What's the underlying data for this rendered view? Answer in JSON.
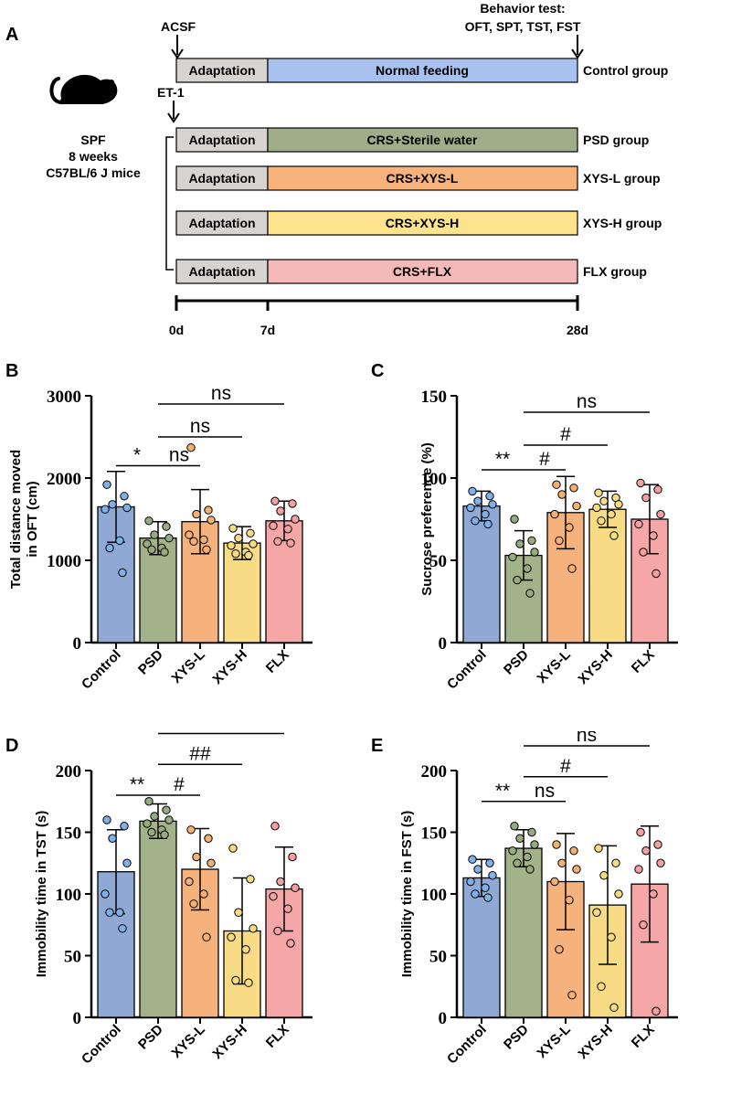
{
  "panelA": {
    "letter": "A",
    "subject": {
      "line1": "SPF",
      "line2": "8 weeks",
      "line3": "C57BL/6 J mice",
      "icon": "mouse-icon"
    },
    "acsf_label": "ACSF",
    "et1_label": "ET-1",
    "behavior_test_line1": "Behavior test:",
    "behavior_test_line2": "OFT, SPT, TST, FST",
    "adaptation_label": "Adaptation",
    "rows": [
      {
        "treatment": "Normal feeding",
        "group": "Control group",
        "color": "#a9c1ee"
      },
      {
        "treatment": "CRS+Sterile water",
        "group": "PSD group",
        "color": "#9fae88"
      },
      {
        "treatment": "CRS+XYS-L",
        "group": "XYS-L group",
        "color": "#f8b27c"
      },
      {
        "treatment": "CRS+XYS-H",
        "group": "XYS-H group",
        "color": "#fde38b"
      },
      {
        "treatment": "CRS+FLX",
        "group": "FLX group",
        "color": "#f6b9b9"
      }
    ],
    "timeline": {
      "t0": "0d",
      "t1": "7d",
      "t2": "28d"
    }
  },
  "chart_data": [
    {
      "panel": "B",
      "type": "bar",
      "categories": [
        "Control",
        "PSD",
        "XYS-L",
        "XYS-H",
        "FLX"
      ],
      "ylabel_line1": "Total distance moved",
      "ylabel_line2": "in OFT (cm)",
      "ylim": [
        0,
        3000
      ],
      "yticks": [
        0,
        1000,
        2000,
        3000
      ],
      "values": [
        1650,
        1270,
        1470,
        1210,
        1480
      ],
      "sd": [
        430,
        200,
        390,
        200,
        240
      ],
      "points": [
        [
          1920,
          1780,
          1680,
          1640,
          1620,
          1240,
          1150,
          850
        ],
        [
          1480,
          1410,
          1310,
          1270,
          1200,
          1150,
          1130,
          1100
        ],
        [
          2370,
          1610,
          1560,
          1490,
          1310,
          1250,
          1230,
          1130
        ],
        [
          1390,
          1330,
          1270,
          1200,
          1180,
          1100,
          1080,
          1060
        ],
        [
          1720,
          1690,
          1600,
          1500,
          1420,
          1380,
          1230,
          1210
        ]
      ],
      "significance": [
        {
          "from": 0,
          "to": 1,
          "label": "*",
          "y": 2150
        },
        {
          "from": 1,
          "to": 2,
          "label": "ns",
          "y": 2150
        },
        {
          "from": 1,
          "to": 3,
          "label": "ns",
          "y": 2500
        },
        {
          "from": 1,
          "to": 4,
          "label": "ns",
          "y": 2900
        }
      ]
    },
    {
      "panel": "C",
      "type": "bar",
      "categories": [
        "Control",
        "PSD",
        "XYS-L",
        "XYS-H",
        "FLX"
      ],
      "ylabel_line1": "Sucrose preference (%)",
      "ylabel_line2": "",
      "ylim": [
        0,
        150
      ],
      "yticks": [
        0,
        50,
        100,
        150
      ],
      "values": [
        83,
        53,
        79,
        81,
        75
      ],
      "sd": [
        9,
        15,
        22,
        11,
        21
      ],
      "points": [
        [
          92,
          89,
          86,
          84,
          82,
          78,
          74,
          72
        ],
        [
          75,
          62,
          60,
          55,
          52,
          45,
          38,
          30
        ],
        [
          96,
          94,
          90,
          83,
          78,
          70,
          62,
          45
        ],
        [
          91,
          88,
          86,
          84,
          82,
          78,
          74,
          65
        ],
        [
          97,
          93,
          88,
          78,
          72,
          65,
          55,
          42
        ]
      ],
      "significance": [
        {
          "from": 0,
          "to": 1,
          "label": "**",
          "y": 105
        },
        {
          "from": 1,
          "to": 2,
          "label": "#",
          "y": 105
        },
        {
          "from": 1,
          "to": 3,
          "label": "#",
          "y": 120
        },
        {
          "from": 1,
          "to": 4,
          "label": "ns",
          "y": 140
        }
      ]
    },
    {
      "panel": "D",
      "type": "bar",
      "categories": [
        "Control",
        "PSD",
        "XYS-L",
        "XYS-H",
        "FLX"
      ],
      "ylabel_line1": "Immobility time in TST (s)",
      "ylabel_line2": "",
      "ylim": [
        0,
        200
      ],
      "yticks": [
        0,
        50,
        100,
        150,
        200
      ],
      "values": [
        118,
        159,
        120,
        70,
        104
      ],
      "sd": [
        34,
        14,
        33,
        43,
        34
      ],
      "points": [
        [
          160,
          155,
          145,
          125,
          100,
          85,
          85,
          72
        ],
        [
          175,
          168,
          163,
          160,
          157,
          152,
          150,
          148
        ],
        [
          152,
          145,
          130,
          125,
          110,
          100,
          92,
          65
        ],
        [
          137,
          112,
          85,
          72,
          65,
          55,
          30,
          28
        ],
        [
          155,
          130,
          110,
          105,
          98,
          88,
          70,
          60
        ]
      ],
      "significance": [
        {
          "from": 0,
          "to": 1,
          "label": "**",
          "y": 180
        },
        {
          "from": 1,
          "to": 2,
          "label": "#",
          "y": 180
        },
        {
          "from": 1,
          "to": 3,
          "label": "##",
          "y": 205
        },
        {
          "from": 1,
          "to": 4,
          "label": "##",
          "y": 230
        }
      ]
    },
    {
      "panel": "E",
      "type": "bar",
      "categories": [
        "Control",
        "PSD",
        "XYS-L",
        "XYS-H",
        "FLX"
      ],
      "ylabel_line1": "Immobility time in FST (s)",
      "ylabel_line2": "",
      "ylim": [
        0,
        200
      ],
      "yticks": [
        0,
        50,
        100,
        150,
        200
      ],
      "values": [
        113,
        137,
        110,
        91,
        108
      ],
      "sd": [
        15,
        15,
        39,
        48,
        47
      ],
      "points": [
        [
          128,
          125,
          120,
          115,
          110,
          105,
          100,
          97
        ],
        [
          155,
          150,
          145,
          140,
          135,
          130,
          125,
          120
        ],
        [
          140,
          135,
          125,
          120,
          110,
          95,
          55,
          18
        ],
        [
          137,
          125,
          115,
          100,
          85,
          65,
          25,
          8
        ],
        [
          150,
          140,
          135,
          125,
          120,
          100,
          75,
          5
        ]
      ],
      "significance": [
        {
          "from": 0,
          "to": 1,
          "label": "**",
          "y": 175
        },
        {
          "from": 1,
          "to": 2,
          "label": "ns",
          "y": 175
        },
        {
          "from": 1,
          "to": 3,
          "label": "#",
          "y": 195
        },
        {
          "from": 1,
          "to": 4,
          "label": "ns",
          "y": 220
        }
      ]
    }
  ],
  "colors": {
    "fills": [
      "#8fa9d4",
      "#a3b389",
      "#f6b27c",
      "#f8dc85",
      "#f5a6a6"
    ],
    "dots": [
      "#7fb0e8",
      "#98aa80",
      "#f4b070",
      "#f8dc80",
      "#f4a0a0"
    ]
  }
}
